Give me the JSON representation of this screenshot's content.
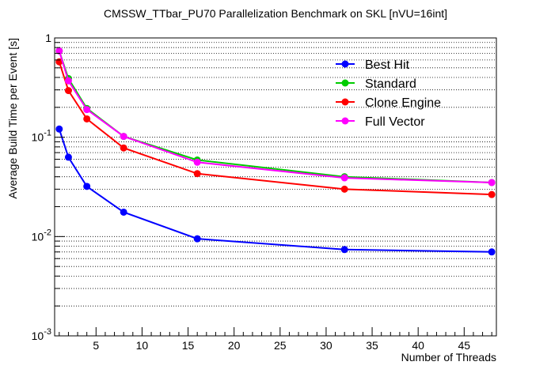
{
  "chart_data": {
    "type": "line",
    "title": "CMSSW_TTbar_PU70 Parallelization Benchmark on SKL [nVU=16int]",
    "xlabel": "Number of Threads",
    "ylabel": "Average Build Time per Event [s]",
    "xlim": [
      0.5,
      48.5
    ],
    "ylim": [
      0.001,
      1
    ],
    "yscale": "log",
    "grid": "horizontal",
    "legend_position": "top-right",
    "x_ticks": [
      5,
      10,
      15,
      20,
      25,
      30,
      35,
      40,
      45
    ],
    "x_tick_labels": [
      "5",
      "10",
      "15",
      "20",
      "25",
      "30",
      "35",
      "40",
      "45"
    ],
    "y_ticks": [
      0.001,
      0.01,
      0.1,
      1
    ],
    "y_tick_labels": [
      {
        "base": "10",
        "exp": "-3"
      },
      {
        "base": "10",
        "exp": "-2"
      },
      {
        "base": "10",
        "exp": "-1"
      },
      {
        "base": "1",
        "exp": ""
      }
    ],
    "x": [
      1,
      2,
      4,
      8,
      16,
      32,
      48
    ],
    "series": [
      {
        "name": "Best Hit",
        "color": "#0000ff",
        "values": [
          0.121,
          0.063,
          0.032,
          0.0176,
          0.0095,
          0.0074,
          0.007
        ]
      },
      {
        "name": "Standard",
        "color": "#00cc00",
        "values": [
          0.74,
          0.39,
          0.195,
          0.102,
          0.059,
          0.04,
          0.035
        ]
      },
      {
        "name": "Clone Engine",
        "color": "#ff0000",
        "values": [
          0.575,
          0.295,
          0.153,
          0.078,
          0.043,
          0.03,
          0.0265
        ]
      },
      {
        "name": "Full Vector",
        "color": "#ff00ff",
        "values": [
          0.74,
          0.37,
          0.19,
          0.102,
          0.056,
          0.039,
          0.035
        ]
      }
    ]
  }
}
